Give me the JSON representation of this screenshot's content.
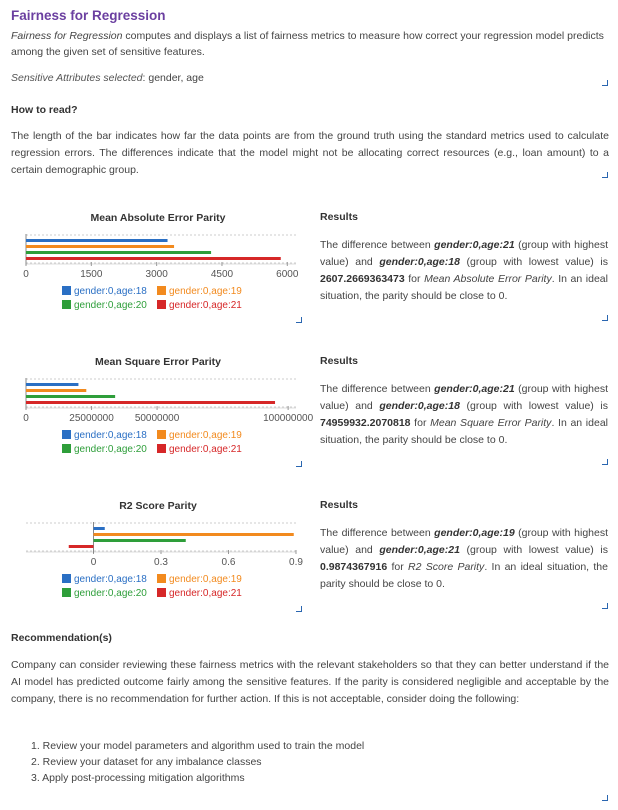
{
  "header": {
    "title": "Fairness for Regression",
    "intro_italic": "Fairness for Regression",
    "intro_rest": " computes and displays a list of fairness metrics to measure how correct your regression model predicts among the given set of sensitive features.",
    "sensitive_label": "Sensitive Attributes selected",
    "sensitive_value": ": gender, age"
  },
  "how_to_read": {
    "title": "How to read?",
    "text": "The length of the bar indicates how far the data points are from the ground truth using the standard metrics used to calculate regression errors. The differences indicate that the model might not be allocating correct resources (e.g., loan amount) to a certain demographic group."
  },
  "colors": {
    "blue": "#2a6fc4",
    "orange": "#f28a1e",
    "green": "#2e9e3a",
    "red": "#d62728"
  },
  "legend_labels": [
    "gender:0,age:18",
    "gender:0,age:19",
    "gender:0,age:20",
    "gender:0,age:21"
  ],
  "sections": [
    {
      "chart_title": "Mean Absolute Error Parity",
      "results_title": "Results",
      "results": {
        "p1": "The difference between ",
        "group_high": "gender:0,age:21",
        "p2": " (group with highest value) and ",
        "group_low": "gender:0,age:18",
        "p3": " (group with lowest value) is ",
        "value": "2607.2669363473",
        "p4": " for ",
        "metric": "Mean Absolute Error Parity",
        "p5": ". In an ideal situation, the parity should be close to 0."
      }
    },
    {
      "chart_title": "Mean Square Error Parity",
      "results_title": "Results",
      "results": {
        "p1": "The difference between ",
        "group_high": "gender:0,age:21",
        "p2": " (group with highest value) and ",
        "group_low": "gender:0,age:18",
        "p3": " (group with lowest value) is ",
        "value": "74959932.2070818",
        "p4": " for ",
        "metric": "Mean Square Error Parity",
        "p5": ". In an ideal situation, the parity should be close to 0."
      }
    },
    {
      "chart_title": "R2 Score Parity",
      "results_title": "Results",
      "results": {
        "p1": "The difference between ",
        "group_high": "gender:0,age:19",
        "p2": " (group with highest value) and ",
        "group_low": "gender:0,age:21",
        "p3": " (group with lowest value) is ",
        "value": "0.9874367916",
        "p4": " for ",
        "metric": "R2 Score Parity",
        "p5": ". In an ideal situation, the parity should be close to 0."
      }
    }
  ],
  "recommendation": {
    "title": "Recommendation(s)",
    "text": "Company can consider reviewing these fairness metrics with the relevant stakeholders so that they can better understand if the AI model has predicted outcome fairly among the sensitive features. If the parity is considered negligible and acceptable by the company, there is no recommendation for further action. If this is not acceptable, consider doing the following:",
    "steps": [
      "1. Review your model parameters and algorithm used to train the model",
      "2. Review your dataset for any imbalance classes",
      "3. Apply post-processing mitigation algorithms"
    ]
  },
  "chart_data": [
    {
      "type": "bar",
      "orientation": "horizontal",
      "title": "Mean Absolute Error Parity",
      "categories": [
        "gender:0,age:18",
        "gender:0,age:19",
        "gender:0,age:20",
        "gender:0,age:21"
      ],
      "values": [
        3250,
        3400,
        4250,
        5850
      ],
      "xlim": [
        0,
        6200
      ],
      "xticks": [
        0,
        1500,
        3000,
        4500,
        6000
      ],
      "xtick_labels": [
        "0",
        "1500",
        "3000",
        "4500",
        "6000"
      ],
      "legend_position": "bottom"
    },
    {
      "type": "bar",
      "orientation": "horizontal",
      "title": "Mean Square Error Parity",
      "categories": [
        "gender:0,age:18",
        "gender:0,age:19",
        "gender:0,age:20",
        "gender:0,age:21"
      ],
      "values": [
        20000000,
        23000000,
        34000000,
        95000000
      ],
      "xlim": [
        0,
        103000000
      ],
      "xticks": [
        0,
        25000000,
        50000000,
        100000000
      ],
      "xtick_labels": [
        "0",
        "25000000",
        "50000000",
        "100000000"
      ],
      "legend_position": "bottom"
    },
    {
      "type": "bar",
      "orientation": "horizontal",
      "title": "R2 Score Parity",
      "categories": [
        "gender:0,age:18",
        "gender:0,age:19",
        "gender:0,age:20",
        "gender:0,age:21"
      ],
      "values": [
        0.05,
        0.89,
        0.41,
        -0.11
      ],
      "xlim": [
        -0.3,
        0.9
      ],
      "xticks": [
        0,
        0.3,
        0.6,
        0.9
      ],
      "xtick_labels": [
        "0",
        "0.3",
        "0.6",
        "0.9"
      ],
      "legend_position": "bottom"
    }
  ]
}
